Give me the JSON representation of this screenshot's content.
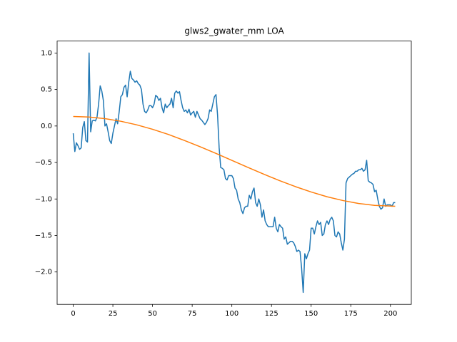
{
  "chart_data": {
    "type": "line",
    "title": "glws2_gwater_mm LOA",
    "xlim": [
      -10.15,
      213.15
    ],
    "xticks": [
      0,
      25,
      50,
      75,
      100,
      125,
      150,
      175,
      200
    ],
    "ylim": [
      -2.444,
      1.164
    ],
    "yticks": [
      {
        "value": -2,
        "label": "−2.0"
      },
      {
        "value": -1.5,
        "label": "−1.5"
      },
      {
        "value": -1,
        "label": "−1.0"
      },
      {
        "value": -0.5,
        "label": "−0.5"
      },
      {
        "value": 0,
        "label": "0.0"
      },
      {
        "value": 0.5,
        "label": "0.5"
      },
      {
        "value": 1,
        "label": "1.0"
      }
    ],
    "series": [
      {
        "color": "#1f77b4",
        "x": [
          0,
          1,
          2,
          3,
          4,
          5,
          6,
          7,
          8,
          9,
          10,
          11,
          12,
          13,
          14,
          15,
          16,
          17,
          18,
          19,
          20,
          21,
          22,
          23,
          24,
          25,
          26,
          27,
          28,
          29,
          30,
          31,
          32,
          33,
          34,
          35,
          36,
          37,
          38,
          39,
          40,
          41,
          42,
          43,
          44,
          45,
          46,
          47,
          48,
          49,
          50,
          51,
          52,
          53,
          54,
          55,
          56,
          57,
          58,
          59,
          60,
          61,
          62,
          63,
          64,
          65,
          66,
          67,
          68,
          69,
          70,
          71,
          72,
          73,
          74,
          75,
          76,
          77,
          78,
          79,
          80,
          81,
          82,
          83,
          84,
          85,
          86,
          87,
          88,
          89,
          90,
          91,
          92,
          93,
          94,
          95,
          96,
          97,
          98,
          99,
          100,
          101,
          102,
          103,
          104,
          105,
          106,
          107,
          108,
          109,
          110,
          111,
          112,
          113,
          114,
          115,
          116,
          117,
          118,
          119,
          120,
          121,
          122,
          123,
          124,
          125,
          126,
          127,
          128,
          129,
          130,
          131,
          132,
          133,
          134,
          135,
          136,
          137,
          138,
          139,
          140,
          141,
          142,
          143,
          144,
          145,
          146,
          147,
          148,
          149,
          150,
          151,
          152,
          153,
          154,
          155,
          156,
          157,
          158,
          159,
          160,
          161,
          162,
          163,
          164,
          165,
          166,
          167,
          168,
          169,
          170,
          171,
          172,
          173,
          174,
          175,
          176,
          177,
          178,
          179,
          180,
          181,
          182,
          183,
          184,
          185,
          186,
          187,
          188,
          189,
          190,
          191,
          192,
          193,
          194,
          195,
          196,
          197,
          198,
          199,
          200,
          201,
          202,
          203
        ],
        "values": [
          -0.1,
          -0.35,
          -0.23,
          -0.27,
          -0.32,
          -0.3,
          -0.02,
          0.06,
          -0.2,
          -0.22,
          1.0,
          -0.08,
          0.07,
          0.08,
          0.07,
          0.12,
          0.3,
          0.55,
          0.48,
          0.35,
          0.0,
          0.03,
          -0.08,
          -0.2,
          -0.24,
          -0.1,
          0.0,
          0.1,
          0.03,
          0.2,
          0.4,
          0.43,
          0.53,
          0.56,
          0.4,
          0.6,
          0.75,
          0.65,
          0.63,
          0.6,
          0.62,
          0.58,
          0.56,
          0.5,
          0.3,
          0.2,
          0.18,
          0.22,
          0.28,
          0.28,
          0.25,
          0.3,
          0.42,
          0.4,
          0.35,
          0.38,
          0.25,
          0.18,
          0.3,
          0.25,
          0.28,
          0.3,
          0.38,
          0.25,
          0.45,
          0.48,
          0.45,
          0.47,
          0.35,
          0.25,
          0.2,
          0.22,
          0.18,
          0.23,
          0.15,
          0.18,
          0.2,
          0.12,
          0.2,
          0.15,
          0.1,
          0.08,
          0.05,
          0.02,
          0.05,
          0.1,
          0.22,
          0.2,
          0.3,
          0.4,
          0.43,
          0.15,
          -0.3,
          -0.57,
          -0.58,
          -0.6,
          -0.72,
          -0.74,
          -0.68,
          -0.68,
          -0.68,
          -0.72,
          -0.85,
          -0.88,
          -1.0,
          -1.05,
          -1.15,
          -1.2,
          -1.12,
          -1.1,
          -1.1,
          -0.95,
          -1.0,
          -0.9,
          -0.85,
          -1.05,
          -1.1,
          -1.0,
          -1.08,
          -1.25,
          -1.15,
          -1.3,
          -1.35,
          -1.38,
          -1.38,
          -1.38,
          -1.38,
          -1.25,
          -1.4,
          -1.45,
          -1.35,
          -1.38,
          -1.4,
          -1.55,
          -1.52,
          -1.62,
          -1.6,
          -1.58,
          -1.58,
          -1.6,
          -1.65,
          -1.72,
          -1.7,
          -1.72,
          -1.95,
          -2.28,
          -1.75,
          -1.82,
          -1.75,
          -1.7,
          -1.4,
          -1.4,
          -1.48,
          -1.38,
          -1.3,
          -1.35,
          -1.32,
          -1.5,
          -1.48,
          -1.35,
          -1.3,
          -1.35,
          -1.28,
          -1.25,
          -1.3,
          -1.5,
          -1.52,
          -1.45,
          -1.48,
          -1.6,
          -1.7,
          -1.55,
          -0.78,
          -0.72,
          -0.7,
          -0.68,
          -0.66,
          -0.65,
          -0.62,
          -0.62,
          -0.6,
          -0.6,
          -0.58,
          -0.62,
          -0.6,
          -0.47,
          -0.75,
          -0.77,
          -0.78,
          -0.8,
          -0.9,
          -0.88,
          -1.0,
          -1.1,
          -1.14,
          -1.12,
          -1.0,
          -1.1,
          -1.08,
          -1.08,
          -1.08,
          -1.1,
          -1.05,
          -1.05
        ]
      },
      {
        "color": "#ff7f0e",
        "x": [
          0,
          10,
          20,
          30,
          40,
          50,
          60,
          70,
          80,
          90,
          100,
          110,
          120,
          130,
          140,
          150,
          160,
          170,
          180,
          190,
          203
        ],
        "values": [
          0.13,
          0.123,
          0.101,
          0.065,
          0.016,
          -0.045,
          -0.116,
          -0.197,
          -0.284,
          -0.376,
          -0.471,
          -0.566,
          -0.659,
          -0.748,
          -0.83,
          -0.904,
          -0.969,
          -1.021,
          -1.062,
          -1.088,
          -1.1
        ]
      }
    ]
  }
}
